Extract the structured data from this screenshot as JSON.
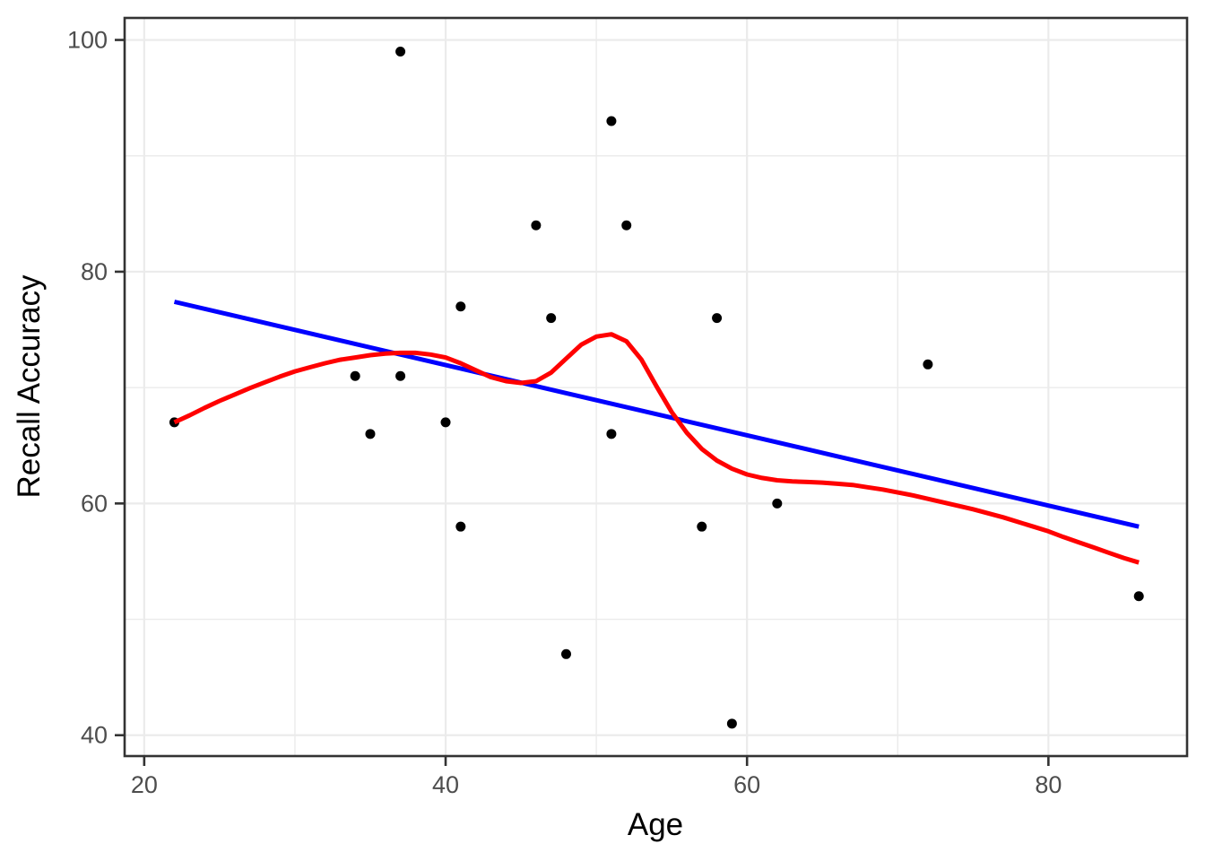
{
  "chart_data": {
    "type": "scatter",
    "title": "",
    "xlabel": "Age",
    "ylabel": "Recall Accuracy",
    "xlim": [
      18.7,
      89.2
    ],
    "ylim": [
      38.2,
      101.9
    ],
    "x_major_ticks": [
      20,
      40,
      60,
      80
    ],
    "x_minor_ticks": [
      30,
      50,
      70
    ],
    "y_major_ticks": [
      40,
      60,
      80,
      100
    ],
    "y_minor_ticks": [
      50,
      70,
      90
    ],
    "grid": "on",
    "legend": "none",
    "point_color": "#000000",
    "grid_color": "#ebebeb",
    "panel_border_color": "#333333",
    "tick_color": "#333333",
    "tick_label_color": "#4d4d4d",
    "axis_title_color": "#000000",
    "points": [
      [
        22,
        67
      ],
      [
        34,
        71
      ],
      [
        35,
        66
      ],
      [
        37,
        71
      ],
      [
        37,
        99
      ],
      [
        40,
        67
      ],
      [
        41,
        58
      ],
      [
        41,
        77
      ],
      [
        46,
        84
      ],
      [
        47,
        76
      ],
      [
        48,
        47
      ],
      [
        51,
        66
      ],
      [
        51,
        93
      ],
      [
        52,
        84
      ],
      [
        57,
        58
      ],
      [
        58,
        76
      ],
      [
        59,
        41
      ],
      [
        62,
        60
      ],
      [
        72,
        72
      ],
      [
        86,
        52
      ]
    ],
    "series": [
      {
        "name": "linear-regression-line",
        "color": "#0000ff",
        "points": [
          [
            22,
            77.4
          ],
          [
            86,
            58.0
          ]
        ]
      },
      {
        "name": "loess-smooth-curve",
        "color": "#ff0000",
        "points": [
          [
            22,
            67.0
          ],
          [
            23,
            67.6
          ],
          [
            24,
            68.25
          ],
          [
            25,
            68.85
          ],
          [
            26,
            69.4
          ],
          [
            27,
            69.95
          ],
          [
            28,
            70.45
          ],
          [
            29,
            70.95
          ],
          [
            30,
            71.4
          ],
          [
            31,
            71.75
          ],
          [
            32,
            72.1
          ],
          [
            33,
            72.4
          ],
          [
            34,
            72.6
          ],
          [
            35,
            72.8
          ],
          [
            36,
            72.93
          ],
          [
            37,
            73.0
          ],
          [
            38,
            73.0
          ],
          [
            39,
            72.85
          ],
          [
            40,
            72.6
          ],
          [
            41,
            72.1
          ],
          [
            42,
            71.5
          ],
          [
            43,
            70.9
          ],
          [
            44,
            70.55
          ],
          [
            45,
            70.4
          ],
          [
            46,
            70.55
          ],
          [
            47,
            71.3
          ],
          [
            48,
            72.5
          ],
          [
            49,
            73.7
          ],
          [
            50,
            74.4
          ],
          [
            51,
            74.6
          ],
          [
            52,
            74.0
          ],
          [
            53,
            72.4
          ],
          [
            54,
            70.1
          ],
          [
            55,
            67.9
          ],
          [
            56,
            66.1
          ],
          [
            57,
            64.7
          ],
          [
            58,
            63.7
          ],
          [
            59,
            63.0
          ],
          [
            60,
            62.5
          ],
          [
            61,
            62.2
          ],
          [
            62,
            62.0
          ],
          [
            63,
            61.9
          ],
          [
            64,
            61.85
          ],
          [
            65,
            61.8
          ],
          [
            66,
            61.7
          ],
          [
            67,
            61.6
          ],
          [
            68,
            61.4
          ],
          [
            69,
            61.2
          ],
          [
            70,
            60.95
          ],
          [
            71,
            60.7
          ],
          [
            72,
            60.4
          ],
          [
            73,
            60.1
          ],
          [
            74,
            59.8
          ],
          [
            75,
            59.5
          ],
          [
            76,
            59.15
          ],
          [
            77,
            58.8
          ],
          [
            78,
            58.4
          ],
          [
            79,
            58.0
          ],
          [
            80,
            57.6
          ],
          [
            81,
            57.1
          ],
          [
            82,
            56.65
          ],
          [
            83,
            56.2
          ],
          [
            84,
            55.75
          ],
          [
            85,
            55.3
          ],
          [
            86,
            54.9
          ]
        ]
      }
    ]
  }
}
